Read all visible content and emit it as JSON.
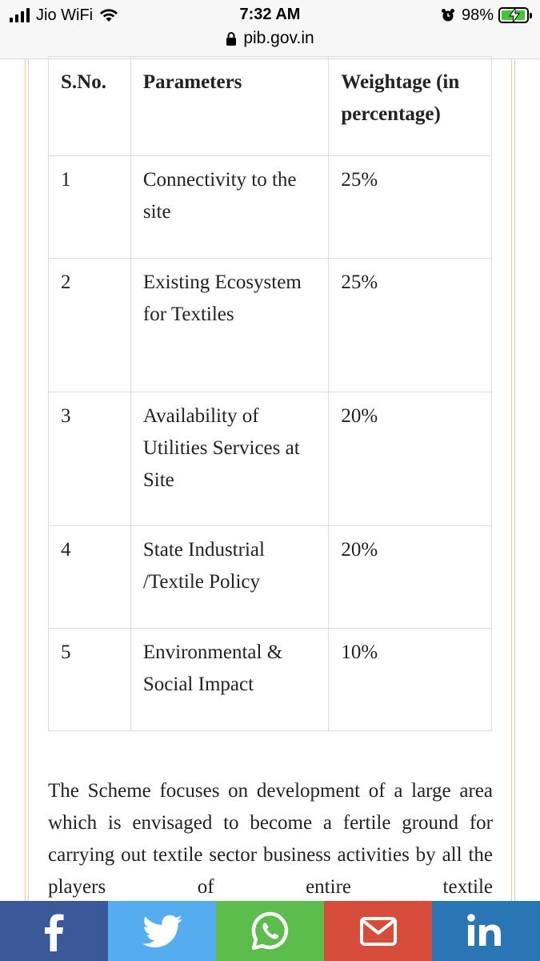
{
  "status_bar": {
    "carrier": "Jio WiFi",
    "time": "7:32 AM",
    "battery_percent": "98%",
    "battery_level": 0.98,
    "url": "pib.gov.in",
    "icons": [
      "signal-icon",
      "wifi-icon",
      "alarm-icon",
      "battery-icon",
      "lock-icon"
    ]
  },
  "table": {
    "headers": [
      "S.No.",
      "Parameters",
      "Weightage (in percentage)"
    ],
    "rows": [
      {
        "sno": "1",
        "parameter": "Connectivity to the site",
        "weightage": "25%"
      },
      {
        "sno": "2",
        "parameter": "Existing Ecosystem for Textiles",
        "weightage": "25%"
      },
      {
        "sno": "3",
        "parameter": "Availability of Utilities Services at Site",
        "weightage": "20%"
      },
      {
        "sno": "4",
        "parameter": "State Industrial /Textile Policy",
        "weightage": "20%"
      },
      {
        "sno": "5",
        "parameter": "Environmental & Social Impact",
        "weightage": "10%"
      }
    ]
  },
  "paragraph": "The Scheme focuses on development of a large area which is envisaged to become a fertile ground for carrying out textile sector business activities by all the players of entire textile",
  "share_bar": {
    "buttons": [
      {
        "name": "facebook",
        "icon": "facebook-icon",
        "color": "#3b5998"
      },
      {
        "name": "twitter",
        "icon": "twitter-icon",
        "color": "#55acee"
      },
      {
        "name": "whatsapp",
        "icon": "whatsapp-icon",
        "color": "#5cbd4d"
      },
      {
        "name": "email",
        "icon": "email-icon",
        "color": "#d74d3b"
      },
      {
        "name": "linkedin",
        "icon": "linkedin-icon",
        "color": "#2a75b3"
      }
    ]
  },
  "colors": {
    "frame_border": "#f0c9a6",
    "table_border": "#dcdcdc"
  }
}
